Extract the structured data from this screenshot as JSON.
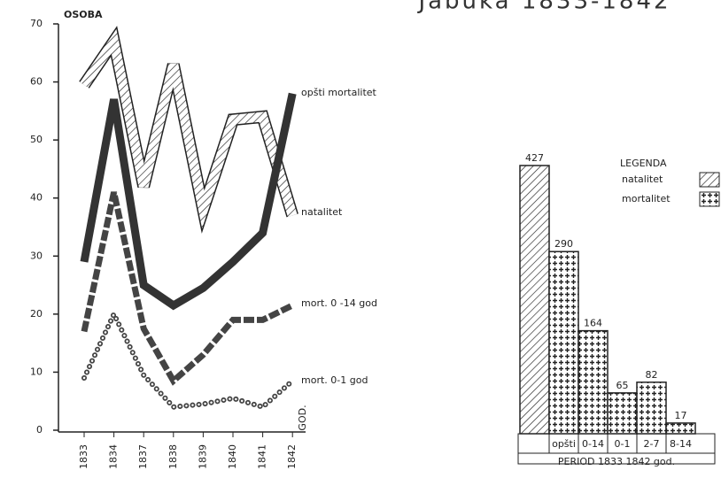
{
  "chart_data": [
    {
      "type": "line",
      "title": "Jabuka 1833-1842",
      "ylabel": "OSOBA",
      "xlabel": "GOD.",
      "categories": [
        "1833",
        "1834",
        "1837",
        "1838",
        "1839",
        "1840",
        "1841",
        "1842"
      ],
      "ylim": [
        0,
        70
      ],
      "yticks": [
        0,
        10,
        20,
        30,
        40,
        50,
        60,
        70
      ],
      "series": [
        {
          "name": "opšti mortalitet",
          "color": "#222222",
          "style": "hatched",
          "values": [
            59.5,
            67,
            42,
            63,
            38,
            53.5,
            54,
            37
          ]
        },
        {
          "name": "natalitet",
          "color": "#333333",
          "style": "solid",
          "values": [
            29,
            57,
            25,
            21.5,
            24.5,
            29,
            34,
            58
          ]
        },
        {
          "name": "mort. 0 -14 god",
          "color": "#444444",
          "style": "dashed",
          "values": [
            17,
            41,
            17.5,
            8.5,
            13,
            19,
            19,
            21.5
          ]
        },
        {
          "name": "mort. 0-1 god",
          "color": "#444444",
          "style": "dotted",
          "values": [
            9,
            20,
            9.5,
            4,
            4.5,
            5.5,
            4,
            8.5
          ]
        }
      ]
    },
    {
      "type": "bar",
      "legend_title": "LEGENDA",
      "xlabel": "PERIOD 1833 1842 god.",
      "categories": [
        null,
        "opšti",
        "0-14",
        "0-1",
        "2-7",
        "8-14"
      ],
      "series": [
        {
          "name": "natalitet",
          "color": "#222222",
          "pattern": "hatch",
          "values": [
            427,
            null,
            null,
            null,
            null,
            null
          ]
        },
        {
          "name": "mortalitet",
          "color": "#222222",
          "pattern": "cross",
          "values": [
            null,
            290,
            164,
            65,
            82,
            17
          ]
        }
      ]
    }
  ]
}
